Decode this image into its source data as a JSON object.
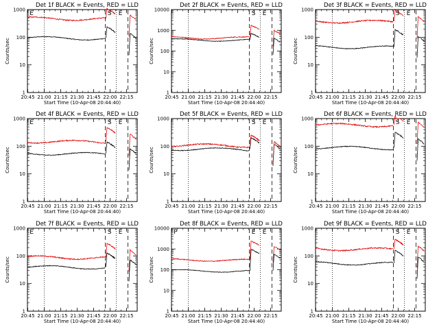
{
  "chart_data": [
    {
      "type": "line",
      "title": "Det 1f BLACK = Events, RED = LLD",
      "xlabel": "Start Time (10-Apr-08 20:44:40)",
      "ylabel": "Counts/sec",
      "x_ticks": [
        "20:45",
        "21:00",
        "21:15",
        "21:30",
        "21:45",
        "22:00",
        "22:15"
      ],
      "y_ticks": [
        "1",
        "10",
        "100",
        "1000"
      ],
      "ylim": [
        1,
        1000
      ],
      "y_scale": "log",
      "markers": [
        "E",
        "S",
        "E"
      ],
      "series": [
        {
          "name": "Events",
          "color": "#000000",
          "level_before": 95,
          "level_after": 150
        },
        {
          "name": "LLD",
          "color": "#e00000",
          "level_before": 480,
          "level_after": 700
        }
      ]
    },
    {
      "type": "line",
      "title": "Det 2f BLACK = Events, RED = LLD",
      "xlabel": "Start Time (10-Apr-08 20:44:40)",
      "ylabel": "Counts/sec",
      "x_ticks": [
        "20:45",
        "21:00",
        "21:15",
        "21:30",
        "21:45",
        "22:00",
        "22:15"
      ],
      "y_ticks": [
        "1",
        "10",
        "100",
        "1000",
        "10000"
      ],
      "ylim": [
        1,
        10000
      ],
      "y_scale": "log",
      "markers": [
        "S",
        "E"
      ],
      "series": [
        {
          "name": "Events",
          "color": "#000000",
          "level_before": 350,
          "level_after": 450
        },
        {
          "name": "LLD",
          "color": "#e00000",
          "level_before": 450,
          "level_after": 1100
        }
      ]
    },
    {
      "type": "line",
      "title": "Det 3f BLACK = Events, RED = LLD",
      "xlabel": "Start Time (10-Apr-08 20:44:40)",
      "ylabel": "Counts/sec",
      "x_ticks": [
        "20:45",
        "21:00",
        "21:15",
        "21:30",
        "21:45",
        "22:00",
        "22:15"
      ],
      "y_ticks": [
        "1",
        "10",
        "100",
        "1000"
      ],
      "ylim": [
        1,
        1000
      ],
      "y_scale": "log",
      "markers": [
        "S",
        "E"
      ],
      "series": [
        {
          "name": "Events",
          "color": "#000000",
          "level_before": 45,
          "level_after": 120
        },
        {
          "name": "LLD",
          "color": "#e00000",
          "level_before": 380,
          "level_after": 600
        }
      ]
    },
    {
      "type": "line",
      "title": "Det 4f BLACK = Events, RED = LLD",
      "xlabel": "Start Time (10-Apr-08 20:44:40)",
      "ylabel": "Counts/sec",
      "x_ticks": [
        "20:45",
        "21:00",
        "21:15",
        "21:30",
        "21:45",
        "22:00",
        "22:15"
      ],
      "y_ticks": [
        "1",
        "10",
        "100",
        "1000"
      ],
      "ylim": [
        1,
        1000
      ],
      "y_scale": "log",
      "markers": [
        "E",
        "S",
        "E"
      ],
      "series": [
        {
          "name": "Events",
          "color": "#000000",
          "level_before": 55,
          "level_after": 90
        },
        {
          "name": "LLD",
          "color": "#e00000",
          "level_before": 150,
          "level_after": 300
        }
      ]
    },
    {
      "type": "line",
      "title": "Det 5f BLACK = Events, RED = LLD",
      "xlabel": "Start Time (10-Apr-08 20:44:40)",
      "ylabel": "Counts/sec",
      "x_ticks": [
        "20:45",
        "21:00",
        "21:15",
        "21:30",
        "21:45",
        "22:00",
        "22:15"
      ],
      "y_ticks": [
        "1",
        "10",
        "100",
        "1000"
      ],
      "ylim": [
        1,
        1000
      ],
      "y_scale": "log",
      "markers": [
        "S",
        "E"
      ],
      "series": [
        {
          "name": "Events",
          "color": "#000000",
          "level_before": 80,
          "level_after": 130
        },
        {
          "name": "LLD",
          "color": "#e00000",
          "level_before": 110,
          "level_after": 160
        }
      ]
    },
    {
      "type": "line",
      "title": "Det 6f BLACK = Events, RED = LLD",
      "xlabel": "Start Time (10-Apr-08 20:44:40)",
      "ylabel": "Counts/sec",
      "x_ticks": [
        "20:45",
        "21:00",
        "21:15",
        "21:30",
        "21:45",
        "22:00",
        "22:15"
      ],
      "y_ticks": [
        "1",
        "10",
        "100",
        "1000"
      ],
      "ylim": [
        1,
        1000
      ],
      "y_scale": "log",
      "markers": [
        "S",
        "E"
      ],
      "series": [
        {
          "name": "Events",
          "color": "#000000",
          "level_before": 90,
          "level_after": 200
        },
        {
          "name": "LLD",
          "color": "#e00000",
          "level_before": 600,
          "level_after": 800
        }
      ]
    },
    {
      "type": "line",
      "title": "Det 7f BLACK = Events, RED = LLD",
      "xlabel": "Start Time (10-Apr-08 20:44:40)",
      "ylabel": "Counts/sec",
      "x_ticks": [
        "20:45",
        "21:00",
        "21:15",
        "21:30",
        "21:45",
        "22:00",
        "22:15"
      ],
      "y_ticks": [
        "1",
        "10",
        "100",
        "1000"
      ],
      "ylim": [
        1,
        1000
      ],
      "y_scale": "log",
      "markers": [
        "E",
        "S",
        "E"
      ],
      "series": [
        {
          "name": "Events",
          "color": "#000000",
          "level_before": 40,
          "level_after": 80
        },
        {
          "name": "LLD",
          "color": "#e00000",
          "level_before": 90,
          "level_after": 180
        }
      ]
    },
    {
      "type": "line",
      "title": "Det 8f BLACK = Events, RED = LLD",
      "xlabel": "Start Time (10-Apr-08 20:44:40)",
      "ylabel": "Counts/sec",
      "x_ticks": [
        "20:45",
        "21:00",
        "21:15",
        "21:30",
        "21:45",
        "22:00",
        "22:15"
      ],
      "y_ticks": [
        "1",
        "10",
        "100",
        "1000",
        "10000"
      ],
      "ylim": [
        1,
        10000
      ],
      "y_scale": "log",
      "markers": [
        "P",
        "E",
        "E"
      ],
      "series": [
        {
          "name": "Events",
          "color": "#000000",
          "level_before": 90,
          "level_after": 600
        },
        {
          "name": "LLD",
          "color": "#e00000",
          "level_before": 300,
          "level_after": 1500
        }
      ]
    },
    {
      "type": "line",
      "title": "Det 9f BLACK = Events, RED = LLD",
      "xlabel": "Start Time (10-Apr-08 20:44:40)",
      "ylabel": "Counts/sec",
      "x_ticks": [
        "20:45",
        "21:00",
        "21:15",
        "21:30",
        "21:45",
        "22:00",
        "22:15"
      ],
      "y_ticks": [
        "1",
        "10",
        "100",
        "1000"
      ],
      "ylim": [
        1,
        1000
      ],
      "y_scale": "log",
      "markers": [
        "S",
        "E"
      ],
      "series": [
        {
          "name": "Events",
          "color": "#000000",
          "level_before": 55,
          "level_after": 100
        },
        {
          "name": "LLD",
          "color": "#e00000",
          "level_before": 180,
          "level_after": 250
        }
      ]
    }
  ]
}
